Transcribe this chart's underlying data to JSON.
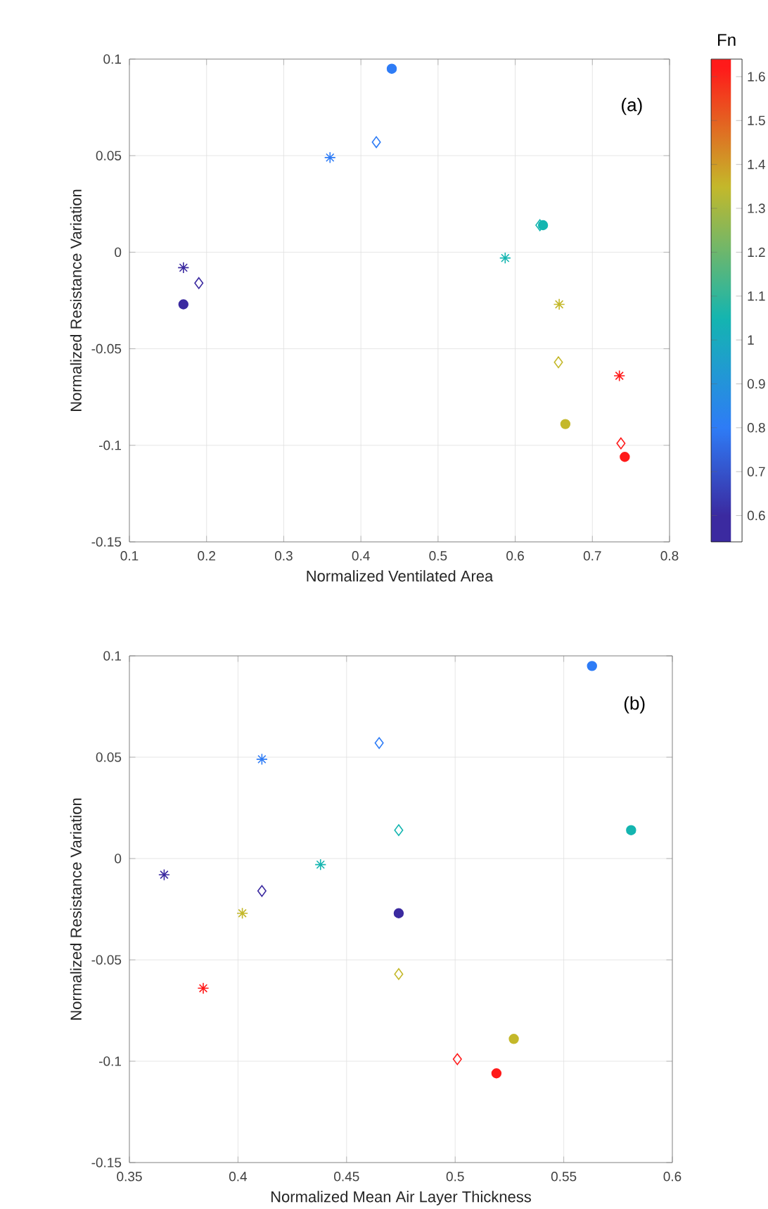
{
  "chart_data": [
    {
      "type": "scatter",
      "xlabel": "Normalized Ventilated Area",
      "ylabel": "Normalized Resistance Variation",
      "xlim": [
        0.1,
        0.8
      ],
      "ylim": [
        -0.15,
        0.1
      ],
      "xticks": [
        0.1,
        0.2,
        0.3,
        0.4,
        0.5,
        0.6,
        0.7,
        0.8
      ],
      "yticks": [
        -0.15,
        -0.1,
        -0.05,
        0,
        0.05,
        0.1
      ],
      "grid": true,
      "annotations": [
        "(a)"
      ],
      "clabel": "Fn",
      "clim": [
        0.54,
        1.64
      ],
      "cticks": [
        0.6,
        0.7,
        0.8,
        0.9,
        1,
        1.1,
        1.2,
        1.3,
        1.4,
        1.5,
        1.6
      ],
      "series": [
        {
          "marker": "cross",
          "x": [
            0.17,
            0.36,
            0.587,
            0.657,
            0.735
          ],
          "values": [
            -0.008,
            0.049,
            -0.003,
            -0.027,
            -0.064
          ],
          "cvalues": [
            0.6,
            0.8,
            1.05,
            1.35,
            1.62
          ],
          "colors": [
            "#3b2aa0",
            "#2e7cf6",
            "#14b5b0",
            "#c4b82a",
            "#ff1a1a"
          ]
        },
        {
          "marker": "diamond",
          "x": [
            0.19,
            0.42,
            0.632,
            0.656,
            0.737
          ],
          "values": [
            -0.016,
            0.057,
            0.014,
            -0.057,
            -0.099
          ],
          "cvalues": [
            0.6,
            0.8,
            1.05,
            1.35,
            1.62
          ],
          "colors": [
            "#3b2aa0",
            "#2e7cf6",
            "#14b5b0",
            "#c4b82a",
            "#ff1a1a"
          ]
        },
        {
          "marker": "circle",
          "x": [
            0.17,
            0.44,
            0.636,
            0.665,
            0.742
          ],
          "values": [
            -0.027,
            0.095,
            0.014,
            -0.089,
            -0.106
          ],
          "cvalues": [
            0.6,
            0.8,
            1.05,
            1.35,
            1.62
          ],
          "colors": [
            "#3b2aa0",
            "#2e7cf6",
            "#14b5b0",
            "#c4b82a",
            "#ff1a1a"
          ]
        }
      ]
    },
    {
      "type": "scatter",
      "xlabel": "Normalized Mean Air Layer Thickness",
      "ylabel": "Normalized Resistance Variation",
      "xlim": [
        0.35,
        0.6
      ],
      "ylim": [
        -0.15,
        0.1
      ],
      "xticks": [
        0.35,
        0.4,
        0.45,
        0.5,
        0.55,
        0.6
      ],
      "yticks": [
        -0.15,
        -0.1,
        -0.05,
        0,
        0.05,
        0.1
      ],
      "grid": true,
      "annotations": [
        "(b)"
      ],
      "series": [
        {
          "marker": "cross",
          "x": [
            0.366,
            0.411,
            0.438,
            0.402,
            0.384
          ],
          "values": [
            -0.008,
            0.049,
            -0.003,
            -0.027,
            -0.064
          ],
          "colors": [
            "#3b2aa0",
            "#2e7cf6",
            "#14b5b0",
            "#c4b82a",
            "#ff1a1a"
          ]
        },
        {
          "marker": "diamond",
          "x": [
            0.411,
            0.465,
            0.474,
            0.474,
            0.501
          ],
          "values": [
            -0.016,
            0.057,
            0.014,
            -0.057,
            -0.099
          ],
          "colors": [
            "#3b2aa0",
            "#2e7cf6",
            "#14b5b0",
            "#c4b82a",
            "#ff1a1a"
          ]
        },
        {
          "marker": "circle",
          "x": [
            0.474,
            0.563,
            0.581,
            0.527,
            0.519
          ],
          "values": [
            -0.027,
            0.095,
            0.014,
            -0.089,
            -0.106
          ],
          "colors": [
            "#3b2aa0",
            "#2e7cf6",
            "#14b5b0",
            "#c4b82a",
            "#ff1a1a"
          ]
        }
      ]
    }
  ]
}
